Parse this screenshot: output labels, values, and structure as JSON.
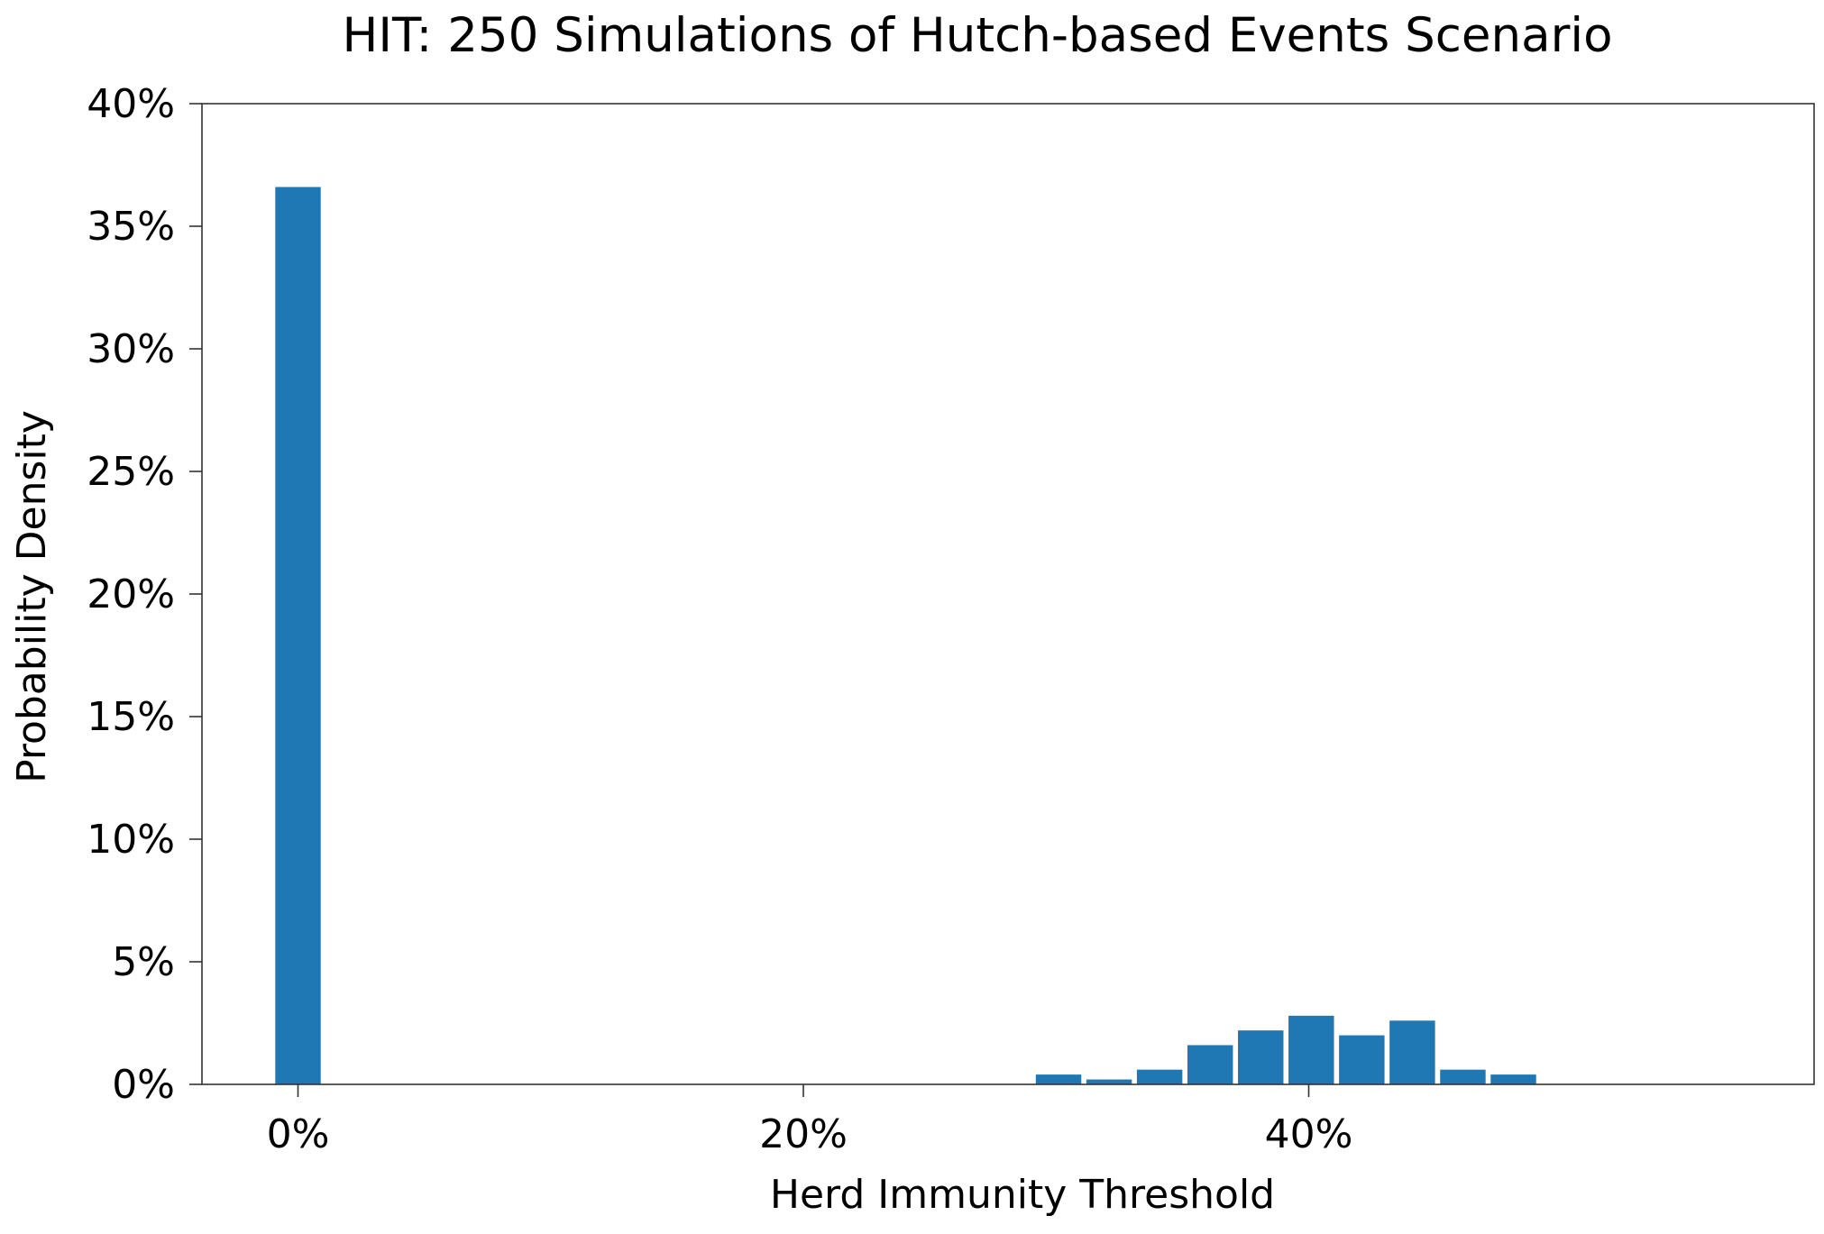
{
  "chart_data": {
    "type": "bar",
    "title": "HIT: 250 Simulations of Hutch-based Events Scenario",
    "xlabel": "Herd Immunity Threshold",
    "ylabel": "Probability Density",
    "xlim": [
      -3.8,
      60
    ],
    "ylim": [
      0,
      40
    ],
    "x_ticks": [
      {
        "value": 0,
        "label": "0%"
      },
      {
        "value": 20,
        "label": "20%"
      },
      {
        "value": 40,
        "label": "40%"
      }
    ],
    "y_ticks": [
      {
        "value": 0,
        "label": "0%"
      },
      {
        "value": 5,
        "label": "5%"
      },
      {
        "value": 10,
        "label": "10%"
      },
      {
        "value": 15,
        "label": "15%"
      },
      {
        "value": 20,
        "label": "20%"
      },
      {
        "value": 25,
        "label": "25%"
      },
      {
        "value": 30,
        "label": "30%"
      },
      {
        "value": 35,
        "label": "35%"
      },
      {
        "value": 40,
        "label": "40%"
      }
    ],
    "bar_width": 1.8,
    "bars": [
      {
        "x": 0.0,
        "value": 36.6
      },
      {
        "x": 30.1,
        "value": 0.4
      },
      {
        "x": 32.1,
        "value": 0.2
      },
      {
        "x": 34.1,
        "value": 0.6
      },
      {
        "x": 36.1,
        "value": 1.6
      },
      {
        "x": 38.1,
        "value": 2.2
      },
      {
        "x": 40.1,
        "value": 2.8
      },
      {
        "x": 42.1,
        "value": 2.0
      },
      {
        "x": 44.1,
        "value": 2.6
      },
      {
        "x": 46.1,
        "value": 0.6
      },
      {
        "x": 48.1,
        "value": 0.4
      }
    ],
    "bar_color": "#1f77b4",
    "grid": false,
    "legend": "none"
  }
}
